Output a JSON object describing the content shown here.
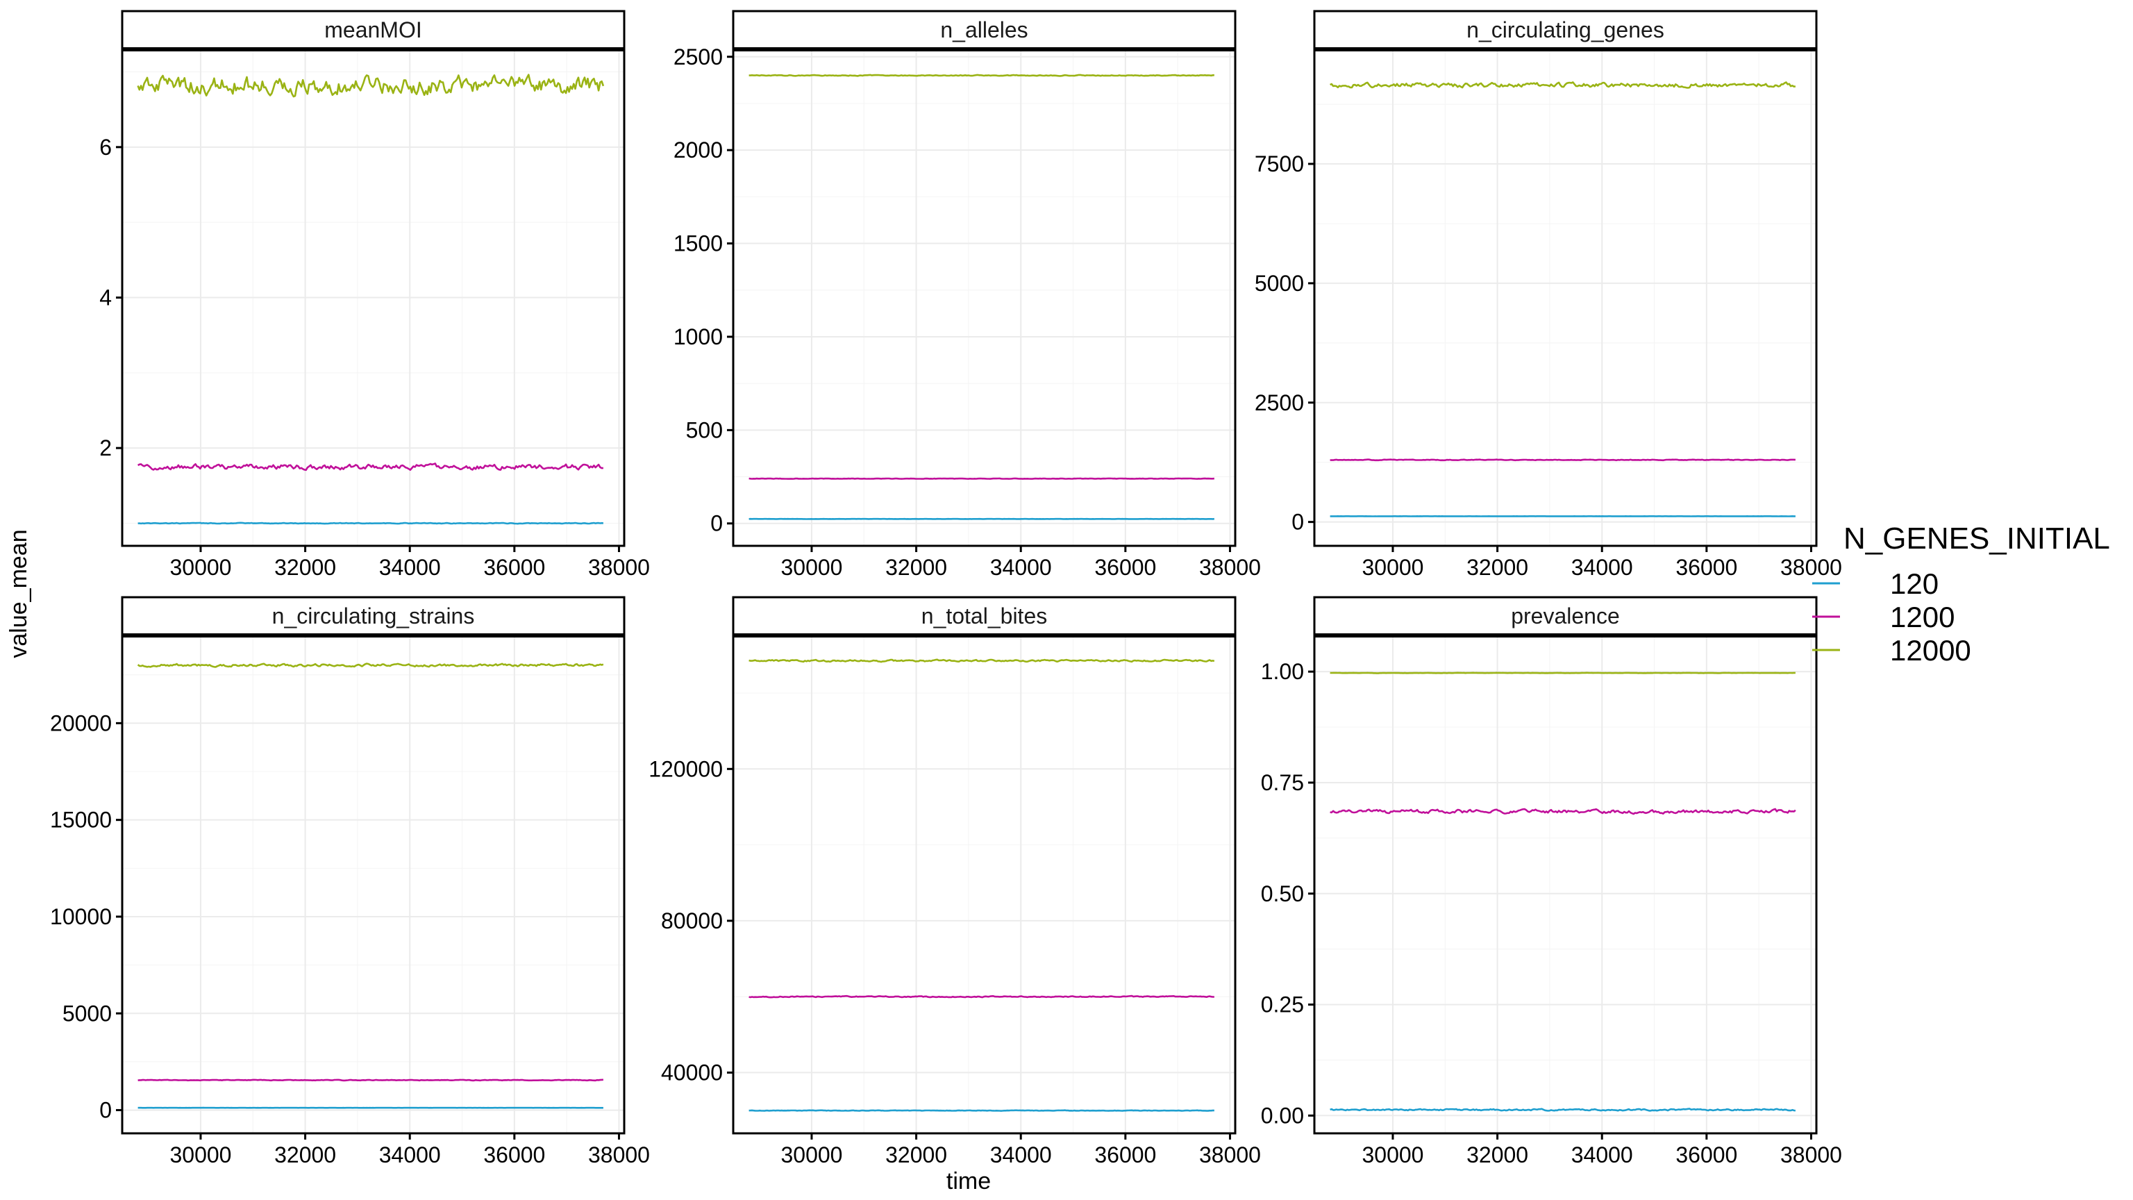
{
  "chart_data": {
    "type": "line",
    "xlabel": "time",
    "ylabel": "value_mean",
    "legend": {
      "title": "N_GENES_INITIAL",
      "position": "right",
      "entries": [
        {
          "label": "120",
          "color": "#1f9fcf"
        },
        {
          "label": "1200",
          "color": "#c0109a"
        },
        {
          "label": "12000",
          "color": "#9ab314"
        }
      ]
    },
    "grid": true,
    "x": {
      "start": 28800,
      "end": 37700,
      "points": 300
    },
    "xlim": [
      28500,
      38100
    ],
    "xticks": [
      30000,
      32000,
      34000,
      36000,
      38000
    ],
    "xtick_labels": [
      "30000",
      "32000",
      "34000",
      "36000",
      "38000"
    ],
    "panels": [
      {
        "title": "meanMOI",
        "ylim": [
          0.7,
          7.3
        ],
        "yticks": [
          2,
          4,
          6
        ],
        "ytick_labels": [
          "2",
          "4",
          "6"
        ],
        "series": [
          {
            "name": "120",
            "mean": 1.0,
            "noise": 0.004
          },
          {
            "name": "1200",
            "mean": 1.75,
            "noise": 0.03
          },
          {
            "name": "12000",
            "mean": 6.82,
            "noise": 0.1
          }
        ]
      },
      {
        "title": "n_alleles",
        "ylim": [
          -120,
          2540
        ],
        "yticks": [
          0,
          500,
          1000,
          1500,
          2000,
          2500
        ],
        "ytick_labels": [
          "0",
          "500",
          "1000",
          "1500",
          "2000",
          "2500"
        ],
        "series": [
          {
            "name": "120",
            "mean": 24,
            "noise": 0.4
          },
          {
            "name": "1200",
            "mean": 240,
            "noise": 1
          },
          {
            "name": "12000",
            "mean": 2400,
            "noise": 2
          }
        ]
      },
      {
        "title": "n_circulating_genes",
        "ylim": [
          -500,
          9900
        ],
        "yticks": [
          0,
          2500,
          5000,
          7500
        ],
        "ytick_labels": [
          "0",
          "2500",
          "5000",
          "7500"
        ],
        "series": [
          {
            "name": "120",
            "mean": 120,
            "noise": 1
          },
          {
            "name": "1200",
            "mean": 1300,
            "noise": 6
          },
          {
            "name": "12000",
            "mean": 9150,
            "noise": 40
          }
        ]
      },
      {
        "title": "n_circulating_strains",
        "ylim": [
          -1200,
          24500
        ],
        "yticks": [
          0,
          5000,
          10000,
          15000,
          20000
        ],
        "ytick_labels": [
          "0",
          "5000",
          "10000",
          "15000",
          "20000"
        ],
        "series": [
          {
            "name": "120",
            "mean": 120,
            "noise": 2
          },
          {
            "name": "1200",
            "mean": 1550,
            "noise": 15
          },
          {
            "name": "12000",
            "mean": 23000,
            "noise": 60
          }
        ]
      },
      {
        "title": "n_total_bites",
        "ylim": [
          24000,
          155000
        ],
        "yticks": [
          40000,
          80000,
          120000
        ],
        "ytick_labels": [
          "40000",
          "80000",
          "120000"
        ],
        "series": [
          {
            "name": "120",
            "mean": 30000,
            "noise": 60
          },
          {
            "name": "1200",
            "mean": 60000,
            "noise": 120
          },
          {
            "name": "12000",
            "mean": 148500,
            "noise": 200
          }
        ]
      },
      {
        "title": "prevalence",
        "ylim": [
          -0.04,
          1.08
        ],
        "yticks": [
          0.0,
          0.25,
          0.5,
          0.75,
          1.0
        ],
        "ytick_labels": [
          "0.00",
          "0.25",
          "0.50",
          "0.75",
          "1.00"
        ],
        "series": [
          {
            "name": "120",
            "mean": 0.013,
            "noise": 0.0015
          },
          {
            "name": "1200",
            "mean": 0.685,
            "noise": 0.0035
          },
          {
            "name": "12000",
            "mean": 0.997,
            "noise": 0.0003
          }
        ]
      }
    ]
  }
}
